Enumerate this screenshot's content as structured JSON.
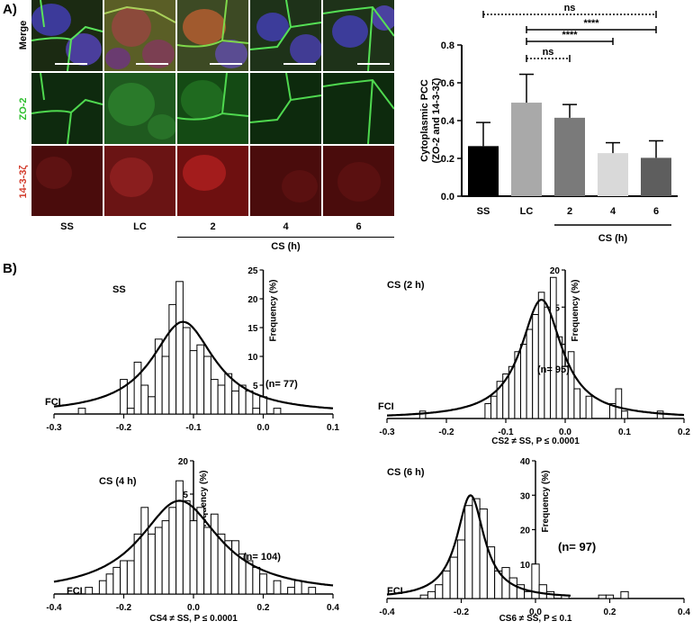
{
  "panels": {
    "a_label": "A)",
    "b_label": "B)"
  },
  "micrographs": {
    "row_labels": [
      "Merge",
      "ZO-2",
      "14-3-3ζ"
    ],
    "row_label_colors": [
      "#000000",
      "#2fbf2f",
      "#d23b2b"
    ],
    "column_labels": [
      "SS",
      "LC",
      "2",
      "4",
      "6"
    ],
    "group_label": "CS (h)"
  },
  "bar_chart": {
    "chart_data": {
      "type": "bar",
      "categories": [
        "SS",
        "LC",
        "2",
        "4",
        "6"
      ],
      "values": [
        0.265,
        0.495,
        0.415,
        0.228,
        0.203
      ],
      "errors": [
        0.125,
        0.15,
        0.07,
        0.055,
        0.09
      ],
      "colors": [
        "#000000",
        "#a9a9a9",
        "#7a7a7a",
        "#d9d9d9",
        "#5e5e5e"
      ],
      "ylabel": "Cytoplasmic PCC (ZO-2 and 14-3-3ζ)",
      "group_label": "CS (h)",
      "ylim": [
        0,
        0.8
      ],
      "yticks": [
        "0.0",
        "0.2",
        "0.4",
        "0.6",
        "0.8"
      ],
      "significance": [
        {
          "from": "SS",
          "to": "6",
          "label": "ns",
          "style": "dotted"
        },
        {
          "from": "LC",
          "to": "6",
          "label": "****",
          "style": "solid"
        },
        {
          "from": "LC",
          "to": "4",
          "label": "****",
          "style": "solid"
        },
        {
          "from": "LC",
          "to": "2",
          "label": "ns",
          "style": "dotted"
        }
      ]
    }
  },
  "histograms": [
    {
      "title": "SS",
      "fci": "FCI",
      "n_label": "(n= 77)",
      "stat_label": "",
      "xticks": [
        "-0.3",
        "-0.2",
        "-0.1",
        "0.0",
        "0.1"
      ],
      "yticks": [
        "5",
        "10",
        "15",
        "20",
        "25"
      ],
      "ylabel": "Frequency (%)",
      "chart_data": {
        "type": "bar",
        "xlim": [
          -0.3,
          0.1
        ],
        "ylim": [
          0,
          25
        ],
        "bin_width": 0.01,
        "bin_centers": [
          -0.26,
          -0.2,
          -0.19,
          -0.18,
          -0.17,
          -0.16,
          -0.15,
          -0.14,
          -0.13,
          -0.12,
          -0.11,
          -0.1,
          -0.09,
          -0.08,
          -0.07,
          -0.06,
          -0.05,
          -0.04,
          -0.03,
          -0.02,
          -0.01,
          0.0,
          0.02
        ],
        "values": [
          1,
          6,
          1,
          9,
          5,
          3,
          13,
          10,
          19,
          23,
          15,
          11,
          12,
          10,
          6,
          5,
          7,
          4,
          5,
          4,
          1,
          3,
          1
        ],
        "fit": {
          "type": "lorentzian",
          "center": -0.115,
          "peak": 16,
          "hwhm": 0.055
        }
      }
    },
    {
      "title": "CS (2 h)",
      "fci": "FCI",
      "n_label": "(n= 95)",
      "stat_label": "CS2 ≠ SS, P ≤ 0.0001",
      "xticks": [
        "-0.3",
        "-0.2",
        "-0.1",
        "0.0",
        "0.1",
        "0.2"
      ],
      "yticks": [
        "5",
        "10",
        "15",
        "20"
      ],
      "ylabel": "Frequency (%)",
      "chart_data": {
        "type": "bar",
        "xlim": [
          -0.3,
          0.2
        ],
        "ylim": [
          0,
          20
        ],
        "bin_width": 0.01,
        "bin_centers": [
          -0.24,
          -0.13,
          -0.12,
          -0.11,
          -0.1,
          -0.09,
          -0.08,
          -0.07,
          -0.06,
          -0.05,
          -0.04,
          -0.03,
          -0.02,
          -0.01,
          0.0,
          0.01,
          0.02,
          0.04,
          0.08,
          0.09,
          0.1,
          0.16
        ],
        "values": [
          1,
          2,
          3,
          5,
          6,
          7,
          9,
          10,
          12,
          14,
          17,
          15,
          19,
          11,
          7,
          9,
          4,
          3,
          2,
          4,
          1,
          1
        ],
        "fit": {
          "type": "lorentzian",
          "center": -0.04,
          "peak": 16,
          "hwhm": 0.042
        }
      }
    },
    {
      "title": "CS (4 h)",
      "fci": "FCI",
      "n_label": "(n= 104)",
      "stat_label": "CS4 ≠ SS, P ≤ 0.0001",
      "xticks": [
        "-0.4",
        "-0.2",
        "0.0",
        "0.2",
        "0.4"
      ],
      "yticks": [
        "5",
        "10",
        "15",
        "20"
      ],
      "ylabel": "Frequency (%)",
      "chart_data": {
        "type": "bar",
        "xlim": [
          -0.4,
          0.4
        ],
        "ylim": [
          0,
          20
        ],
        "bin_width": 0.02,
        "bin_centers": [
          -0.3,
          -0.26,
          -0.24,
          -0.22,
          -0.2,
          -0.18,
          -0.16,
          -0.14,
          -0.12,
          -0.1,
          -0.08,
          -0.06,
          -0.04,
          -0.02,
          0.0,
          0.02,
          0.04,
          0.06,
          0.08,
          0.1,
          0.12,
          0.14,
          0.16,
          0.18,
          0.2,
          0.24,
          0.28,
          0.3,
          0.34
        ],
        "values": [
          1,
          2,
          3,
          4,
          5,
          5,
          9,
          13,
          9,
          10,
          11,
          13,
          17,
          14,
          11,
          13,
          10,
          12,
          9,
          8,
          8,
          6,
          5,
          4,
          3,
          2,
          1,
          2,
          1
        ],
        "fit": {
          "type": "lorentzian",
          "center": -0.04,
          "peak": 14,
          "hwhm": 0.14
        }
      }
    },
    {
      "title": "CS (6 h)",
      "fci": "FCI",
      "n_label": "(n= 97)",
      "stat_label": "CS6 ≠ SS, P ≤ 0.1",
      "xticks": [
        "-0.4",
        "-0.2",
        "0.0",
        "0.2",
        "0.4"
      ],
      "yticks": [
        "10",
        "20",
        "30",
        "40"
      ],
      "ylabel": "Frequency (%)",
      "chart_data": {
        "type": "bar",
        "xlim": [
          -0.4,
          0.4
        ],
        "ylim": [
          0,
          40
        ],
        "bin_width": 0.02,
        "bin_centers": [
          -0.3,
          -0.28,
          -0.26,
          -0.24,
          -0.22,
          -0.2,
          -0.18,
          -0.16,
          -0.14,
          -0.12,
          -0.1,
          -0.08,
          -0.06,
          -0.04,
          -0.02,
          0.0,
          0.02,
          0.04,
          0.08,
          0.18,
          0.2,
          0.24
        ],
        "values": [
          1,
          2,
          4,
          8,
          12,
          17,
          27,
          29,
          26,
          15,
          8,
          9,
          6,
          4,
          2,
          10,
          4,
          2,
          1,
          1,
          1,
          2
        ],
        "fit": {
          "type": "lorentzian",
          "center": -0.175,
          "peak": 30,
          "hwhm": 0.045
        }
      }
    }
  ]
}
